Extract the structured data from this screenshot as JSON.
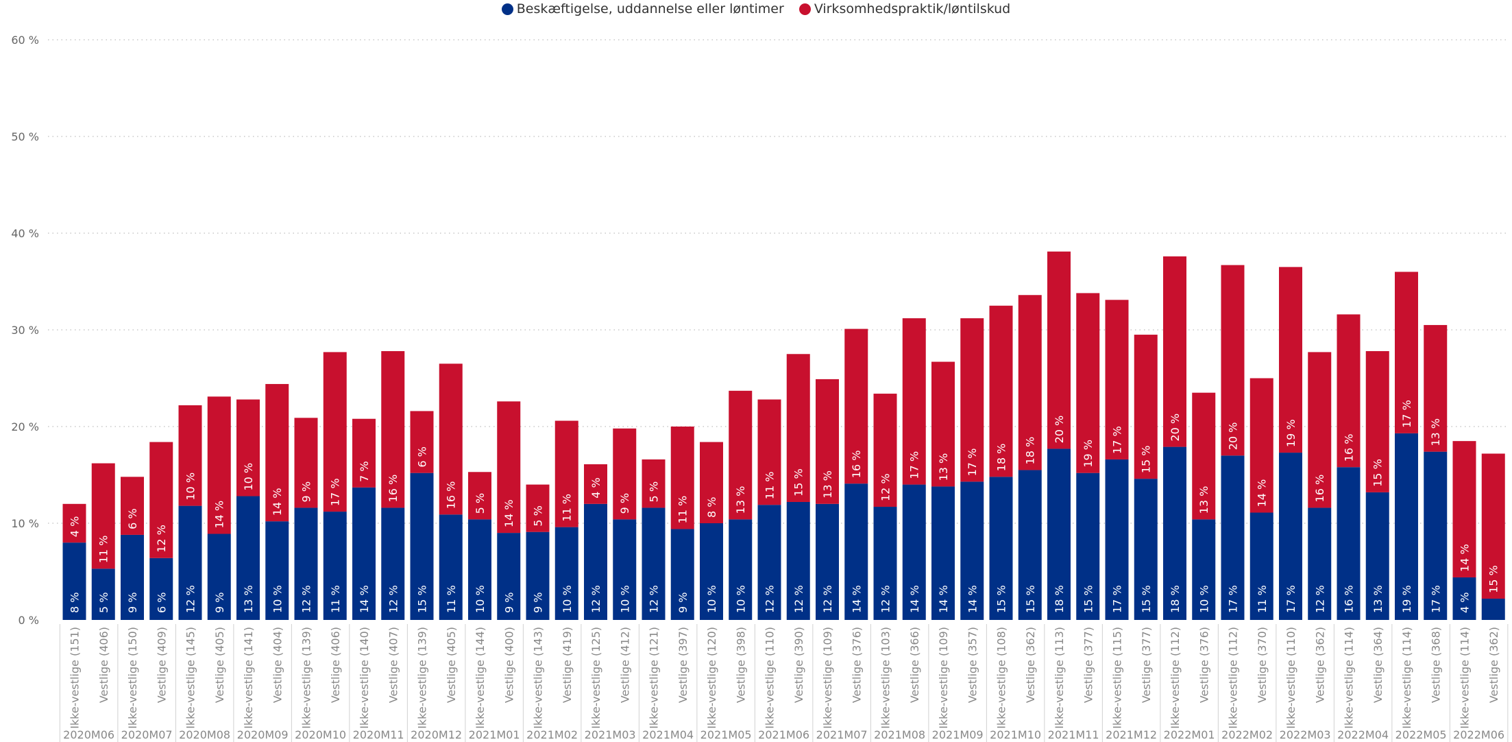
{
  "chart_data": {
    "type": "bar",
    "stacked": true,
    "legend_position": "top-center",
    "grid": true,
    "ylim": [
      0,
      60
    ],
    "y_ticks": [
      "0 %",
      "10 %",
      "20 %",
      "30 %",
      "40 %",
      "50 %",
      "60 %"
    ],
    "colors": {
      "blue": "#003087",
      "red": "#C8102E",
      "grid": "#c8c8c8",
      "tick_text": "#666666",
      "axis_text": "#888888"
    },
    "series": [
      {
        "name": "Beskæftigelse, uddannelse eller løntimer",
        "color": "#003087"
      },
      {
        "name": "Virksomhedspraktik/løntilskud",
        "color": "#C8102E"
      }
    ],
    "groups": [
      "2020M06",
      "2020M07",
      "2020M08",
      "2020M09",
      "2020M10",
      "2020M11",
      "2020M12",
      "2021M01",
      "2021M02",
      "2021M03",
      "2021M04",
      "2021M05",
      "2021M06",
      "2021M07",
      "2021M08",
      "2021M09",
      "2021M10",
      "2021M11",
      "2021M12",
      "2022M01",
      "2022M02",
      "2022M03",
      "2022M04",
      "2022M05",
      "2022M06"
    ],
    "bars": [
      {
        "label": "Ikke-vestlige (151)",
        "group": 0,
        "blue": 8,
        "red": 4,
        "blue_label": "8 %",
        "red_label": "4 %"
      },
      {
        "label": "Vestlige (406)",
        "group": 0,
        "blue": 5.3,
        "red": 10.9,
        "blue_label": "5 %",
        "red_label": "11 %"
      },
      {
        "label": "Ikke-vestlige (150)",
        "group": 1,
        "blue": 8.8,
        "red": 6,
        "blue_label": "9 %",
        "red_label": "6 %"
      },
      {
        "label": "Vestlige (409)",
        "group": 1,
        "blue": 6.4,
        "red": 12,
        "blue_label": "6 %",
        "red_label": "12 %"
      },
      {
        "label": "Ikke-vestlige (145)",
        "group": 2,
        "blue": 11.8,
        "red": 10.4,
        "blue_label": "12 %",
        "red_label": "10 %"
      },
      {
        "label": "Vestlige (405)",
        "group": 2,
        "blue": 8.9,
        "red": 14.2,
        "blue_label": "9 %",
        "red_label": "14 %"
      },
      {
        "label": "Ikke-vestlige (141)",
        "group": 3,
        "blue": 12.8,
        "red": 10,
        "blue_label": "13 %",
        "red_label": "10 %"
      },
      {
        "label": "Vestlige (404)",
        "group": 3,
        "blue": 10.2,
        "red": 14.2,
        "blue_label": "10 %",
        "red_label": "14 %"
      },
      {
        "label": "Ikke-vestlige (139)",
        "group": 4,
        "blue": 11.6,
        "red": 9.3,
        "blue_label": "12 %",
        "red_label": "9 %"
      },
      {
        "label": "Vestlige (406)",
        "group": 4,
        "blue": 11.2,
        "red": 16.5,
        "blue_label": "11 %",
        "red_label": "17 %"
      },
      {
        "label": "Ikke-vestlige (140)",
        "group": 5,
        "blue": 13.7,
        "red": 7.1,
        "blue_label": "14 %",
        "red_label": "7 %"
      },
      {
        "label": "Vestlige (407)",
        "group": 5,
        "blue": 11.6,
        "red": 16.2,
        "blue_label": "12 %",
        "red_label": "16 %"
      },
      {
        "label": "Ikke-vestlige (139)",
        "group": 6,
        "blue": 15.2,
        "red": 6.4,
        "blue_label": "15 %",
        "red_label": "6 %"
      },
      {
        "label": "Vestlige (405)",
        "group": 6,
        "blue": 10.9,
        "red": 15.6,
        "blue_label": "11 %",
        "red_label": "16 %"
      },
      {
        "label": "Ikke-vestlige (144)",
        "group": 7,
        "blue": 10.4,
        "red": 4.9,
        "blue_label": "10 %",
        "red_label": "5 %"
      },
      {
        "label": "Vestlige (400)",
        "group": 7,
        "blue": 9,
        "red": 13.6,
        "blue_label": "9 %",
        "red_label": "14 %"
      },
      {
        "label": "Ikke-vestlige (143)",
        "group": 8,
        "blue": 9.1,
        "red": 4.9,
        "blue_label": "9 %",
        "red_label": "5 %"
      },
      {
        "label": "Vestlige (419)",
        "group": 8,
        "blue": 9.6,
        "red": 11,
        "blue_label": "10 %",
        "red_label": "11 %"
      },
      {
        "label": "Ikke-vestlige (125)",
        "group": 9,
        "blue": 12,
        "red": 4.1,
        "blue_label": "12 %",
        "red_label": "4 %"
      },
      {
        "label": "Vestlige (412)",
        "group": 9,
        "blue": 10.4,
        "red": 9.4,
        "blue_label": "10 %",
        "red_label": "9 %"
      },
      {
        "label": "Ikke-vestlige (121)",
        "group": 10,
        "blue": 11.6,
        "red": 5,
        "blue_label": "12 %",
        "red_label": "5 %"
      },
      {
        "label": "Vestlige (397)",
        "group": 10,
        "blue": 9.4,
        "red": 10.6,
        "blue_label": "9 %",
        "red_label": "11 %"
      },
      {
        "label": "Ikke-vestlige (120)",
        "group": 11,
        "blue": 10,
        "red": 8.4,
        "blue_label": "10 %",
        "red_label": "8 %"
      },
      {
        "label": "Vestlige (398)",
        "group": 11,
        "blue": 10.4,
        "red": 13.3,
        "blue_label": "10 %",
        "red_label": "13 %"
      },
      {
        "label": "Ikke-vestlige (110)",
        "group": 12,
        "blue": 11.9,
        "red": 10.9,
        "blue_label": "12 %",
        "red_label": "11 %"
      },
      {
        "label": "Vestlige (390)",
        "group": 12,
        "blue": 12.2,
        "red": 15.3,
        "blue_label": "12 %",
        "red_label": "15 %"
      },
      {
        "label": "Ikke-vestlige (109)",
        "group": 13,
        "blue": 12,
        "red": 12.9,
        "blue_label": "12 %",
        "red_label": "13 %"
      },
      {
        "label": "Vestlige (376)",
        "group": 13,
        "blue": 14.1,
        "red": 16,
        "blue_label": "14 %",
        "red_label": "16 %"
      },
      {
        "label": "Ikke-vestlige (103)",
        "group": 14,
        "blue": 11.7,
        "red": 11.7,
        "blue_label": "12 %",
        "red_label": "12 %"
      },
      {
        "label": "Vestlige (366)",
        "group": 14,
        "blue": 14,
        "red": 17.2,
        "blue_label": "14 %",
        "red_label": "17 %"
      },
      {
        "label": "Ikke-vestlige (109)",
        "group": 15,
        "blue": 13.8,
        "red": 12.9,
        "blue_label": "14 %",
        "red_label": "13 %"
      },
      {
        "label": "Vestlige (357)",
        "group": 15,
        "blue": 14.3,
        "red": 16.9,
        "blue_label": "14 %",
        "red_label": "17 %"
      },
      {
        "label": "Ikke-vestlige (108)",
        "group": 16,
        "blue": 14.8,
        "red": 17.7,
        "blue_label": "15 %",
        "red_label": "18 %"
      },
      {
        "label": "Vestlige (362)",
        "group": 16,
        "blue": 15.5,
        "red": 18.1,
        "blue_label": "15 %",
        "red_label": "18 %"
      },
      {
        "label": "Ikke-vestlige (113)",
        "group": 17,
        "blue": 17.7,
        "red": 20.4,
        "blue_label": "18 %",
        "red_label": "20 %"
      },
      {
        "label": "Vestlige (377)",
        "group": 17,
        "blue": 15.2,
        "red": 18.6,
        "blue_label": "15 %",
        "red_label": "19 %"
      },
      {
        "label": "Ikke-vestlige (115)",
        "group": 18,
        "blue": 16.6,
        "red": 16.5,
        "blue_label": "17 %",
        "red_label": "17 %"
      },
      {
        "label": "Vestlige (377)",
        "group": 18,
        "blue": 14.6,
        "red": 14.9,
        "blue_label": "15 %",
        "red_label": "15 %"
      },
      {
        "label": "Ikke-vestlige (112)",
        "group": 19,
        "blue": 17.9,
        "red": 19.7,
        "blue_label": "18 %",
        "red_label": "20 %"
      },
      {
        "label": "Vestlige (376)",
        "group": 19,
        "blue": 10.4,
        "red": 13.1,
        "blue_label": "10 %",
        "red_label": "13 %"
      },
      {
        "label": "Ikke-vestlige (112)",
        "group": 20,
        "blue": 17,
        "red": 19.7,
        "blue_label": "17 %",
        "red_label": "20 %"
      },
      {
        "label": "Vestlige (370)",
        "group": 20,
        "blue": 11.1,
        "red": 13.9,
        "blue_label": "11 %",
        "red_label": "14 %"
      },
      {
        "label": "Ikke-vestlige (110)",
        "group": 21,
        "blue": 17.3,
        "red": 19.2,
        "blue_label": "17 %",
        "red_label": "19 %"
      },
      {
        "label": "Vestlige (362)",
        "group": 21,
        "blue": 11.6,
        "red": 16.1,
        "blue_label": "12 %",
        "red_label": "16 %"
      },
      {
        "label": "Ikke-vestlige (114)",
        "group": 22,
        "blue": 15.8,
        "red": 15.8,
        "blue_label": "16 %",
        "red_label": "16 %"
      },
      {
        "label": "Vestlige (364)",
        "group": 22,
        "blue": 13.2,
        "red": 14.6,
        "blue_label": "13 %",
        "red_label": "15 %"
      },
      {
        "label": "Ikke-vestlige (114)",
        "group": 23,
        "blue": 19.3,
        "red": 16.7,
        "blue_label": "19 %",
        "red_label": "17 %"
      },
      {
        "label": "Vestlige (368)",
        "group": 23,
        "blue": 17.4,
        "red": 13.1,
        "blue_label": "17 %",
        "red_label": "13 %"
      },
      {
        "label": "Ikke-vestlige (114)",
        "group": 24,
        "blue": 4.4,
        "red": 14.1,
        "blue_label": "4 %",
        "red_label": "14 %"
      },
      {
        "label": "Vestlige (362)",
        "group": 24,
        "blue": 2.2,
        "red": 15,
        "blue_label": "",
        "red_label": "15 %"
      }
    ]
  }
}
